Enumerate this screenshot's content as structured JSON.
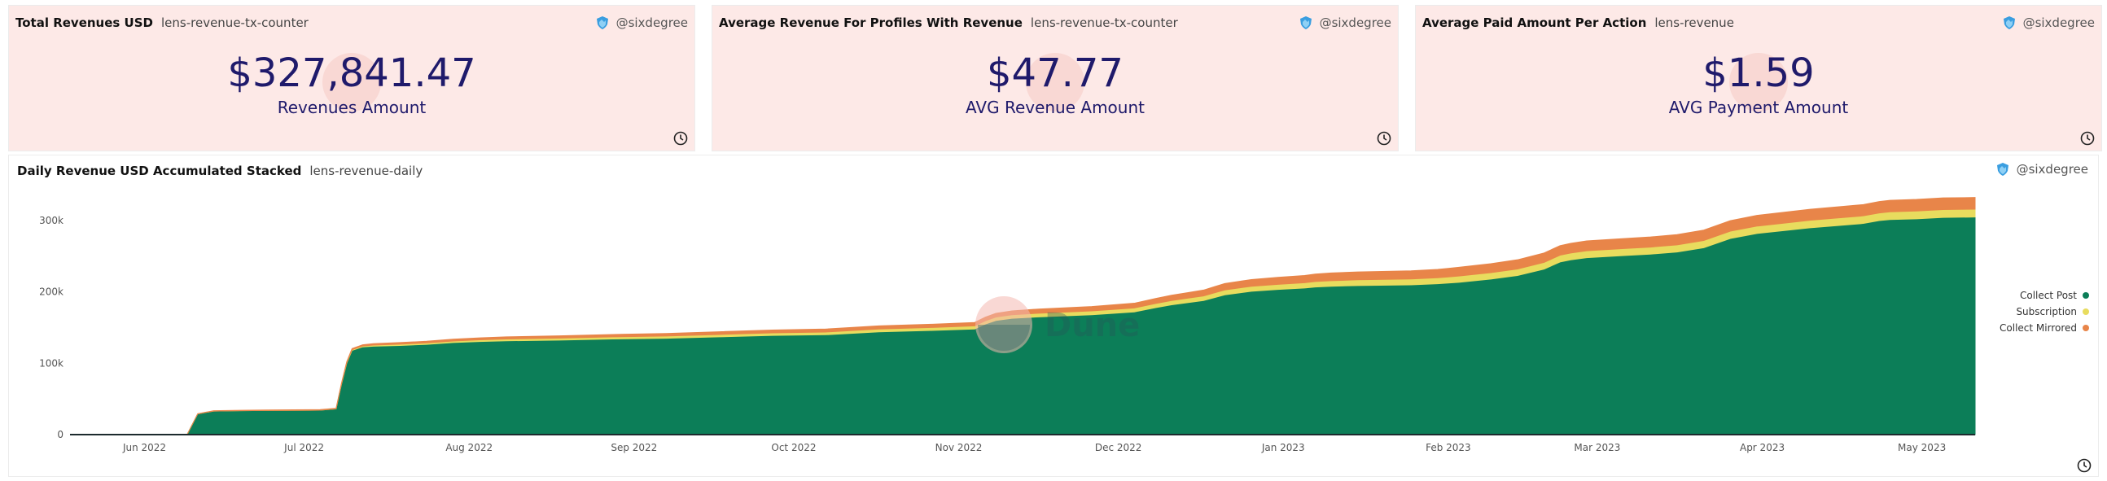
{
  "widgets": [
    {
      "title": "Total Revenues USD",
      "query": "lens-revenue-tx-counter",
      "owner": "@sixdegree",
      "value": "$327,841.47",
      "label": "Revenues Amount"
    },
    {
      "title": "Average Revenue For Profiles With Revenue",
      "query": "lens-revenue-tx-counter",
      "owner": "@sixdegree",
      "value": "$47.77",
      "label": "AVG Revenue Amount"
    },
    {
      "title": "Average Paid Amount Per Action",
      "query": "lens-revenue",
      "owner": "@sixdegree",
      "value": "$1.59",
      "label": "AVG Payment Amount"
    }
  ],
  "chart_card": {
    "title": "Daily Revenue USD Accumulated Stacked",
    "query": "lens-revenue-daily",
    "owner": "@sixdegree",
    "watermark": "Dune"
  },
  "colors": {
    "card_bg": "#fde9e7",
    "value": "#1f1a6b",
    "collect_post": "#0c7e58",
    "subscription": "#e8dc5e",
    "collect_mirrored": "#e88549"
  },
  "chart_data": {
    "type": "area",
    "stacked": true,
    "title": "Daily Revenue USD Accumulated Stacked",
    "xlabel": "",
    "ylabel": "",
    "ylim": [
      0,
      340000
    ],
    "yticks": [
      0,
      100000,
      200000,
      300000
    ],
    "ytick_labels": [
      "0",
      "100k",
      "200k",
      "300k"
    ],
    "xticks": [
      12,
      42,
      73,
      104,
      134,
      165,
      195,
      226,
      257,
      285,
      316,
      346
    ],
    "xtick_labels": [
      "Jun 2022",
      "Jul 2022",
      "Aug 2022",
      "Sep 2022",
      "Oct 2022",
      "Nov 2022",
      "Dec 2022",
      "Jan 2023",
      "Feb 2023",
      "Mar 2023",
      "Apr 2023",
      "May 2023"
    ],
    "x_range": [
      -2,
      356
    ],
    "x": [
      -2,
      20,
      22,
      25,
      30,
      35,
      40,
      45,
      48,
      49,
      50,
      51,
      53,
      55,
      60,
      65,
      70,
      75,
      80,
      90,
      100,
      110,
      120,
      130,
      140,
      150,
      160,
      168,
      170,
      172,
      175,
      180,
      190,
      198,
      202,
      205,
      208,
      211,
      213,
      215,
      220,
      225,
      230,
      232,
      235,
      240,
      250,
      255,
      257,
      259,
      265,
      270,
      275,
      278,
      280,
      283,
      290,
      295,
      300,
      305,
      310,
      315,
      320,
      325,
      330,
      335,
      338,
      340,
      345,
      350,
      356
    ],
    "series": [
      {
        "name": "Collect Post",
        "values": [
          0,
          0,
          29000,
          33000,
          33500,
          33800,
          34000,
          34200,
          36000,
          70000,
          100000,
          118000,
          123000,
          124000,
          125000,
          126500,
          129000,
          130500,
          131500,
          132500,
          134000,
          135000,
          137000,
          139000,
          140000,
          144000,
          146000,
          148000,
          155000,
          160000,
          163000,
          165000,
          168000,
          172000,
          178000,
          182000,
          185000,
          188000,
          192000,
          196000,
          201000,
          203500,
          205500,
          207000,
          208000,
          209000,
          210000,
          211500,
          212500,
          213500,
          218000,
          223000,
          232000,
          242000,
          245000,
          248000,
          251000,
          253000,
          256000,
          262000,
          275000,
          282000,
          286000,
          290000,
          293000,
          296000,
          300000,
          301500,
          302500,
          304500,
          305000
        ]
      },
      {
        "name": "Subscription",
        "values": [
          0,
          0,
          0,
          0,
          0,
          0,
          0,
          0,
          0,
          500,
          800,
          1000,
          1200,
          1500,
          1800,
          2000,
          2200,
          2400,
          2600,
          2800,
          3000,
          3200,
          3400,
          3600,
          3800,
          4000,
          4200,
          4400,
          4600,
          4800,
          5000,
          5200,
          5400,
          5600,
          5800,
          6000,
          6200,
          6400,
          6600,
          6800,
          7000,
          7200,
          7400,
          7600,
          7800,
          8000,
          8200,
          8400,
          8600,
          8800,
          9000,
          9200,
          9400,
          9500,
          9600,
          9700,
          9800,
          9900,
          10000,
          10100,
          10200,
          10300,
          10400,
          10500,
          10600,
          10700,
          10800,
          10900,
          11000,
          11000,
          11000
        ]
      },
      {
        "name": "Collect Mirrored",
        "values": [
          0,
          0,
          300,
          500,
          600,
          700,
          800,
          900,
          1000,
          1200,
          1400,
          1600,
          1800,
          2000,
          2200,
          2400,
          2600,
          2800,
          3000,
          3200,
          3400,
          3600,
          3800,
          4000,
          4200,
          4400,
          4600,
          4800,
          5000,
          5200,
          5400,
          5800,
          6200,
          6600,
          7000,
          7400,
          7800,
          8200,
          8600,
          9000,
          9400,
          9800,
          10200,
          10500,
          10800,
          11100,
          11400,
          11700,
          12000,
          12300,
          12600,
          12900,
          13200,
          13400,
          13600,
          13800,
          14000,
          14200,
          14400,
          14600,
          14800,
          15000,
          15200,
          15400,
          15600,
          15800,
          16000,
          16100,
          16200,
          16300,
          16400
        ]
      }
    ]
  }
}
